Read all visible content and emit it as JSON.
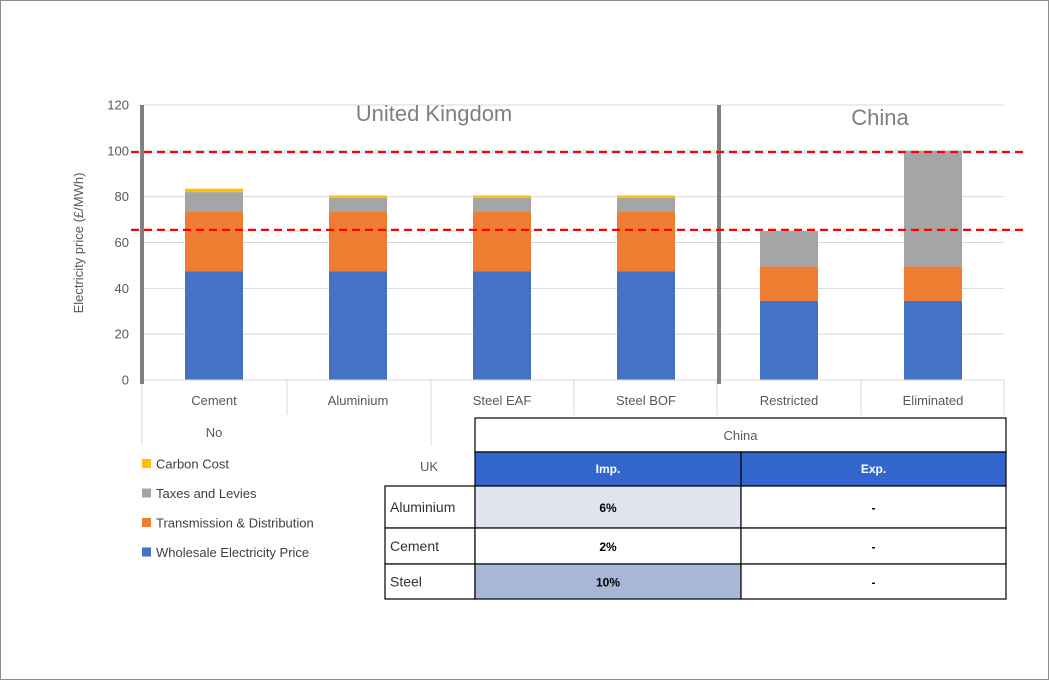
{
  "chart_data": {
    "type": "bar",
    "stacked": true,
    "ylabel": "Electricity price (£/MWh)",
    "xlabel": "",
    "ylim": [
      0,
      120
    ],
    "yticks": [
      0,
      20,
      40,
      60,
      80,
      100,
      120
    ],
    "grid": true,
    "categories": [
      "Cement",
      "Aluminium",
      "Steel EAF",
      "Steel BOF",
      "Restricted",
      "Eliminated"
    ],
    "category_subgroup": "No",
    "regions": [
      {
        "label": "United Kingdom",
        "categories": [
          "Cement",
          "Aluminium",
          "Steel EAF",
          "Steel BOF"
        ]
      },
      {
        "label": "China",
        "categories": [
          "Restricted",
          "Eliminated"
        ]
      }
    ],
    "series": [
      {
        "name": "Wholesale Electricity Price",
        "color": "#4472c4",
        "values": [
          47.5,
          47.5,
          47.5,
          47.5,
          34.5,
          34.5
        ]
      },
      {
        "name": "Transmission & Distribution",
        "color": "#ed7d31",
        "values": [
          26,
          26,
          26,
          26,
          15,
          15
        ]
      },
      {
        "name": "Taxes and Levies",
        "color": "#a5a5a5",
        "values": [
          8.5,
          6,
          6,
          6,
          15.5,
          50.5
        ]
      },
      {
        "name": "Carbon Cost",
        "color": "#ffc000",
        "values": [
          1.5,
          1,
          1,
          1,
          0,
          0
        ]
      }
    ],
    "reference_lines": [
      {
        "y": 99.5,
        "color": "#ff0000",
        "style": "dashed"
      },
      {
        "y": 65.5,
        "color": "#ff0000",
        "style": "dashed"
      }
    ],
    "legend_placement": "bottom-left",
    "legend_order": [
      "Carbon Cost",
      "Taxes and Levies",
      "Transmission & Distribution",
      "Wholesale Electricity Price"
    ]
  },
  "table": {
    "group_header": "China",
    "row_header_label": "UK",
    "columns": [
      "Imp.",
      "Exp."
    ],
    "header_color": "#3366cc",
    "rows": [
      {
        "label": "Aluminium",
        "values": [
          "6%",
          "-"
        ],
        "highlight": "#dfe4ef"
      },
      {
        "label": "Cement",
        "values": [
          "2%",
          "-"
        ],
        "highlight": "#ffffff"
      },
      {
        "label": "Steel",
        "values": [
          "10%",
          "-"
        ],
        "highlight": "#a9b7d6"
      }
    ]
  }
}
